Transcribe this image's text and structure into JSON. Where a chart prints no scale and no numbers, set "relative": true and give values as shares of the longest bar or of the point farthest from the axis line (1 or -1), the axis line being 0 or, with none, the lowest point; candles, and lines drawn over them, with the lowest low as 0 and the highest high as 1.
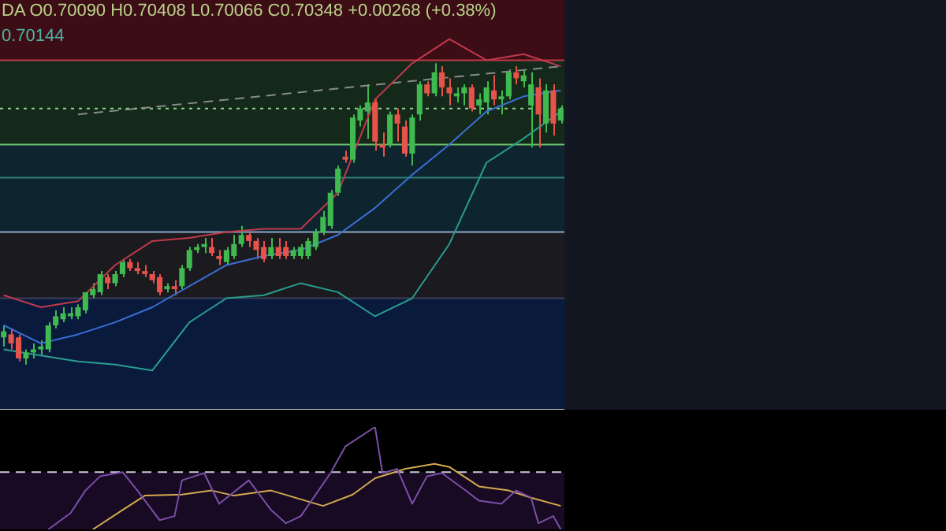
{
  "chart_data": [
    {
      "type": "candlestick",
      "relative": true,
      "annotations": [
        "DA O0.70090 H0.70408 L0.70066 C0.70348 +0.00268 (+0.38%)",
        "0.70144"
      ],
      "categories": [
        null,
        null,
        null,
        null,
        null,
        null,
        null,
        null,
        null,
        null,
        null,
        null,
        null,
        null,
        null,
        null,
        null,
        null,
        null,
        null,
        null,
        null,
        null,
        null,
        null,
        null,
        null,
        null,
        null,
        null,
        null,
        null,
        null,
        null,
        null,
        null,
        null,
        null,
        null,
        null,
        null,
        null,
        null,
        null,
        null,
        null,
        null,
        null,
        null,
        null,
        null,
        null,
        null,
        null,
        null,
        null,
        null,
        null,
        null,
        null,
        null,
        null,
        null,
        null,
        null,
        null,
        null,
        null,
        null,
        null,
        null,
        null,
        null,
        null,
        null,
        null
      ],
      "ohlc": [
        [
          0.09,
          0.13,
          0.06,
          0.11
        ],
        [
          0.1,
          0.12,
          0.05,
          0.07
        ],
        [
          0.09,
          0.1,
          0.01,
          0.02
        ],
        [
          0.02,
          0.05,
          0,
          0.04
        ],
        [
          0.04,
          0.07,
          0.02,
          0.05
        ],
        [
          0.05,
          0.08,
          0.03,
          0.06
        ],
        [
          0.05,
          0.14,
          0.04,
          0.13
        ],
        [
          0.13,
          0.18,
          0.12,
          0.16
        ],
        [
          0.15,
          0.19,
          0.14,
          0.17
        ],
        [
          0.16,
          0.19,
          0.15,
          0.17
        ],
        [
          0.16,
          0.2,
          0.15,
          0.19
        ],
        [
          0.18,
          0.24,
          0.17,
          0.24
        ],
        [
          0.23,
          0.27,
          0.22,
          0.25
        ],
        [
          0.24,
          0.31,
          0.23,
          0.3
        ],
        [
          0.29,
          0.3,
          0.25,
          0.27
        ],
        [
          0.27,
          0.31,
          0.26,
          0.3
        ],
        [
          0.3,
          0.35,
          0.29,
          0.34
        ],
        [
          0.34,
          0.35,
          0.31,
          0.32
        ],
        [
          0.32,
          0.34,
          0.3,
          0.31
        ],
        [
          0.31,
          0.33,
          0.29,
          0.3
        ],
        [
          0.3,
          0.31,
          0.27,
          0.28
        ],
        [
          0.29,
          0.3,
          0.23,
          0.24
        ],
        [
          0.25,
          0.27,
          0.24,
          0.26
        ],
        [
          0.26,
          0.28,
          0.23,
          0.25
        ],
        [
          0.26,
          0.33,
          0.25,
          0.32
        ],
        [
          0.32,
          0.39,
          0.31,
          0.38
        ],
        [
          0.38,
          0.4,
          0.37,
          0.39
        ],
        [
          0.39,
          0.42,
          0.37,
          0.4
        ],
        [
          0.39,
          0.42,
          0.36,
          0.37
        ],
        [
          0.36,
          0.38,
          0.33,
          0.35
        ],
        [
          0.34,
          0.39,
          0.33,
          0.38
        ],
        [
          0.36,
          0.43,
          0.35,
          0.4
        ],
        [
          0.4,
          0.46,
          0.39,
          0.43
        ],
        [
          0.43,
          0.44,
          0.39,
          0.41
        ],
        [
          0.41,
          0.42,
          0.35,
          0.38
        ],
        [
          0.39,
          0.41,
          0.34,
          0.35
        ],
        [
          0.36,
          0.42,
          0.35,
          0.39
        ],
        [
          0.39,
          0.42,
          0.35,
          0.36
        ],
        [
          0.39,
          0.41,
          0.35,
          0.36
        ],
        [
          0.36,
          0.39,
          0.35,
          0.38
        ],
        [
          0.36,
          0.4,
          0.35,
          0.39
        ],
        [
          0.36,
          0.42,
          0.35,
          0.41
        ],
        [
          0.39,
          0.45,
          0.38,
          0.44
        ],
        [
          0.44,
          0.51,
          0.43,
          0.49
        ],
        [
          0.46,
          0.58,
          0.45,
          0.57
        ],
        [
          0.57,
          0.66,
          0.56,
          0.65
        ],
        [
          0.69,
          0.71,
          0.67,
          0.68
        ],
        [
          0.68,
          0.83,
          0.67,
          0.82
        ],
        [
          0.81,
          0.86,
          0.79,
          0.85
        ],
        [
          0.84,
          0.93,
          0.75,
          0.87
        ],
        [
          0.87,
          0.88,
          0.71,
          0.74
        ],
        [
          0.73,
          0.77,
          0.69,
          0.72
        ],
        [
          0.73,
          0.84,
          0.72,
          0.83
        ],
        [
          0.83,
          0.85,
          0.74,
          0.8
        ],
        [
          0.79,
          0.81,
          0.69,
          0.7
        ],
        [
          0.7,
          0.83,
          0.66,
          0.82
        ],
        [
          0.83,
          0.94,
          0.81,
          0.93
        ],
        [
          0.93,
          0.94,
          0.89,
          0.9
        ],
        [
          0.9,
          1,
          0.89,
          0.97
        ],
        [
          0.97,
          0.99,
          0.89,
          0.92
        ],
        [
          0.92,
          0.95,
          0.86,
          0.9
        ],
        [
          0.89,
          0.92,
          0.87,
          0.9
        ],
        [
          0.9,
          0.93,
          0.86,
          0.92
        ],
        [
          0.92,
          0.93,
          0.84,
          0.85
        ],
        [
          0.86,
          0.9,
          0.83,
          0.88
        ],
        [
          0.87,
          0.94,
          0.83,
          0.92
        ],
        [
          0.91,
          0.96,
          0.86,
          0.88
        ],
        [
          0.88,
          0.91,
          0.83,
          0.89
        ],
        [
          0.89,
          0.98,
          0.88,
          0.97
        ],
        [
          0.97,
          0.99,
          0.93,
          0.95
        ],
        [
          0.94,
          0.98,
          0.92,
          0.96
        ],
        [
          0.86,
          0.97,
          0.72,
          0.93
        ],
        [
          0.92,
          0.95,
          0.72,
          0.83
        ],
        [
          0.8,
          0.93,
          0.77,
          0.91
        ],
        [
          0.91,
          0.93,
          0.76,
          0.8
        ],
        [
          0.81,
          0.86,
          0.8,
          0.85
        ]
      ],
      "series": [
        {
          "type": "line",
          "color": "#c0394a",
          "values": [
            0.23,
            null,
            null,
            null,
            null,
            0.19,
            null,
            null,
            null,
            null,
            0.21,
            null,
            null,
            null,
            null,
            0.33,
            null,
            null,
            null,
            null,
            0.41,
            null,
            null,
            null,
            null,
            0.42,
            null,
            null,
            null,
            null,
            0.44,
            null,
            null,
            null,
            null,
            0.45,
            null,
            null,
            null,
            null,
            0.45,
            null,
            null,
            null,
            null,
            0.57,
            null,
            null,
            null,
            null,
            0.88,
            null,
            null,
            null,
            null,
            1.0,
            null,
            null,
            null,
            null,
            1.08,
            null,
            null,
            null,
            null,
            1.01,
            null,
            null,
            null,
            null,
            1.03,
            null,
            null,
            null,
            null,
            0.99
          ]
        },
        {
          "type": "line",
          "color": "#3a6fd8",
          "values": [
            0.13,
            null,
            null,
            null,
            null,
            0.07,
            null,
            null,
            null,
            null,
            0.1,
            null,
            null,
            null,
            null,
            0.14,
            null,
            null,
            null,
            null,
            0.19,
            null,
            null,
            null,
            null,
            0.26,
            null,
            null,
            null,
            null,
            0.33,
            null,
            null,
            null,
            null,
            0.36,
            null,
            null,
            null,
            null,
            0.38,
            null,
            null,
            null,
            null,
            0.43,
            null,
            null,
            null,
            null,
            0.52,
            null,
            null,
            null,
            null,
            0.63,
            null,
            null,
            null,
            null,
            0.73,
            null,
            null,
            null,
            null,
            0.84,
            null,
            null,
            null,
            null,
            0.89,
            null,
            null,
            null,
            null,
            0.91
          ]
        },
        {
          "type": "line",
          "color": "#2a9d8f",
          "values": [
            0.05,
            null,
            null,
            null,
            null,
            0.03,
            null,
            null,
            null,
            null,
            0.01,
            null,
            null,
            null,
            null,
            0,
            null,
            null,
            null,
            null,
            -0.02,
            null,
            null,
            null,
            null,
            0.14,
            null,
            null,
            null,
            null,
            0.22,
            null,
            null,
            null,
            null,
            0.23,
            null,
            null,
            null,
            null,
            0.27,
            null,
            null,
            null,
            null,
            0.24,
            null,
            null,
            null,
            null,
            0.16,
            null,
            null,
            null,
            null,
            0.22,
            null,
            null,
            null,
            null,
            0.4,
            null,
            null,
            null,
            null,
            0.67,
            null,
            null,
            null,
            null,
            0.75,
            null,
            null,
            null,
            null,
            0.84
          ]
        },
        {
          "type": "line",
          "color": "#8a8a8a",
          "line_style": "dashed",
          "values": [
            null,
            null,
            null,
            null,
            null,
            null,
            null,
            null,
            null,
            null,
            0.83,
            null,
            null,
            null,
            null,
            null,
            null,
            null,
            null,
            null,
            null,
            null,
            null,
            null,
            null,
            null,
            null,
            null,
            null,
            null,
            null,
            null,
            null,
            null,
            null,
            null,
            null,
            null,
            null,
            null,
            null,
            null,
            null,
            null,
            null,
            null,
            null,
            null,
            null,
            null,
            null,
            null,
            null,
            null,
            null,
            null,
            null,
            null,
            null,
            null,
            null,
            null,
            null,
            null,
            null,
            null,
            null,
            null,
            null,
            null,
            null,
            null,
            null,
            null,
            null,
            0.99
          ]
        }
      ],
      "bands": [
        {
          "axis": "y",
          "from": 1.01,
          "to": 1.21,
          "color": "#3d0d15"
        },
        {
          "axis": "y",
          "from": 0.73,
          "to": 1.01,
          "color": "#14291a"
        },
        {
          "axis": "y",
          "from": 0.44,
          "to": 0.73,
          "color": "#0e2530"
        },
        {
          "axis": "y",
          "from": 0.22,
          "to": 0.44,
          "color": "#1b1b1f"
        },
        {
          "axis": "y",
          "from": -0.15,
          "to": 0.22,
          "color": "#0a1a3c"
        }
      ],
      "ref_lines": [
        {
          "axis": "y",
          "value": 1.01,
          "color": "#c0394a"
        },
        {
          "axis": "y",
          "value": 0.85,
          "color": "#8fd18f",
          "line_style": "dotted"
        },
        {
          "axis": "y",
          "value": 0.73,
          "color": "#6fc16f"
        },
        {
          "axis": "y",
          "value": 0.62,
          "color": "#2f7f70"
        },
        {
          "axis": "y",
          "value": 0.44,
          "color": "#8aa8c8"
        },
        {
          "axis": "y",
          "value": 0.22,
          "color": "#3a3f5a"
        },
        {
          "axis": "y",
          "value": -0.15,
          "color": "#d0d0d0"
        }
      ]
    },
    {
      "type": "line",
      "relative": true,
      "categories": [
        null,
        null,
        null,
        null,
        null,
        null,
        null,
        null,
        null,
        null,
        null,
        null,
        null,
        null,
        null,
        null,
        null,
        null,
        null,
        null,
        null,
        null,
        null,
        null,
        null,
        null,
        null,
        null,
        null,
        null,
        null,
        null,
        null,
        null,
        null,
        null,
        null,
        null,
        null,
        null,
        null,
        null,
        null,
        null,
        null,
        null,
        null,
        null,
        null,
        null,
        null,
        null,
        null,
        null,
        null,
        null,
        null,
        null,
        null,
        null,
        null,
        null,
        null,
        null,
        null,
        null,
        null,
        null,
        null,
        null,
        null,
        null,
        null,
        null,
        null,
        null
      ],
      "series": [
        {
          "color": "#7b4fa8",
          "values": [
            null,
            null,
            null,
            null,
            null,
            null,
            0,
            null,
            null,
            0.16,
            null,
            0.38,
            null,
            0.52,
            null,
            null,
            0.56,
            null,
            0.38,
            null,
            null,
            0.09,
            null,
            0.13,
            0.48,
            null,
            null,
            0.55,
            null,
            0.25,
            null,
            null,
            null,
            0.48,
            null,
            null,
            0.19,
            null,
            0.06,
            null,
            0.13,
            null,
            null,
            null,
            0.55,
            null,
            0.81,
            null,
            null,
            null,
            1,
            0.55,
            null,
            0.59,
            null,
            0.25,
            null,
            0.52,
            null,
            0.55,
            null,
            null,
            0.39,
            null,
            0.28,
            null,
            null,
            0.25,
            null,
            0.38,
            null,
            0.31,
            0.06,
            null,
            0.13,
            0
          ]
        },
        {
          "color": "#d4a94f",
          "values": [
            null,
            null,
            null,
            null,
            null,
            null,
            null,
            null,
            null,
            null,
            null,
            null,
            0,
            null,
            null,
            null,
            0.19,
            null,
            null,
            0.33,
            null,
            null,
            null,
            null,
            0.34,
            null,
            null,
            null,
            0.38,
            null,
            null,
            0.33,
            null,
            null,
            null,
            null,
            0.38,
            null,
            null,
            null,
            null,
            null,
            null,
            0.23,
            null,
            null,
            null,
            0.34,
            null,
            null,
            0.5,
            null,
            null,
            null,
            0.59,
            null,
            null,
            null,
            0.64,
            null,
            0.61,
            null,
            null,
            null,
            0.42,
            null,
            null,
            null,
            0.38,
            null,
            null,
            0.31,
            null,
            null,
            null,
            0.23
          ]
        }
      ],
      "bands": [
        {
          "axis": "y",
          "from": 0,
          "to": 0.56,
          "color": "#170a22"
        }
      ],
      "ref_lines": [
        {
          "axis": "y",
          "value": 0.56,
          "color": "#c8c8d8",
          "line_style": "dashed"
        }
      ]
    }
  ]
}
